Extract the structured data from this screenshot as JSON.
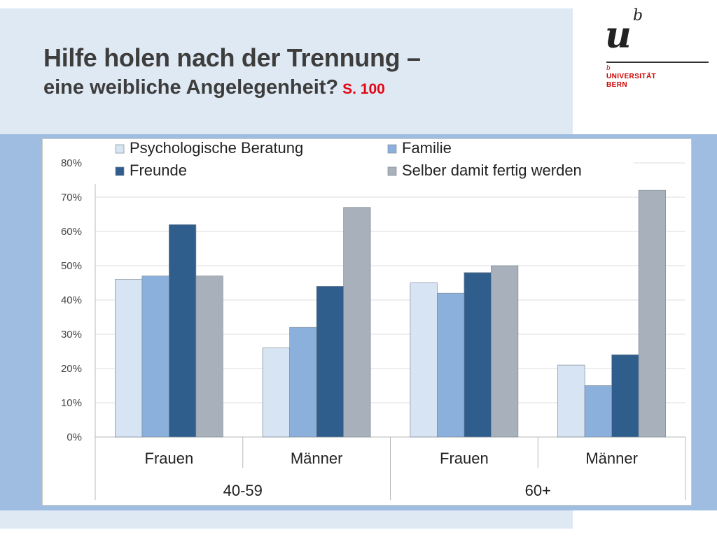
{
  "slide": {
    "title": "Hilfe holen nach der Trennung –",
    "subtitle": "eine weibliche Angelegenheit?",
    "page_ref": "S. 100"
  },
  "logo": {
    "mark_u": "u",
    "mark_b": "b",
    "small_b": "b",
    "line1": "UNIVERSITÄT",
    "line2": "BERN"
  },
  "colors": {
    "psych": "#d6e4f3",
    "familie": "#8bb0dc",
    "freunde": "#2f5d8c",
    "selber": "#a8b1bb",
    "bar_stroke": "#7f8a96",
    "grid": "#dcdcdc",
    "axis": "#b8b8b8"
  },
  "chart_data": {
    "type": "bar",
    "title": "",
    "ylim": [
      0,
      80
    ],
    "yticks": [
      0,
      10,
      20,
      30,
      40,
      50,
      60,
      70,
      80
    ],
    "ytick_labels": [
      "0%",
      "10%",
      "20%",
      "30%",
      "40%",
      "50%",
      "60%",
      "70%",
      "80%"
    ],
    "legend_position": "top",
    "categories": [
      "Frauen",
      "Männer",
      "Frauen",
      "Männer"
    ],
    "groups": [
      {
        "label": "40-59",
        "categories": [
          "Frauen",
          "Männer"
        ]
      },
      {
        "label": "60+",
        "categories": [
          "Frauen",
          "Männer"
        ]
      }
    ],
    "series": [
      {
        "name": "Psychologische Beratung",
        "color_key": "psych",
        "values": [
          46,
          26,
          45,
          21
        ]
      },
      {
        "name": "Familie",
        "color_key": "familie",
        "values": [
          47,
          32,
          42,
          15
        ]
      },
      {
        "name": "Freunde",
        "color_key": "freunde",
        "values": [
          62,
          44,
          48,
          24
        ]
      },
      {
        "name": "Selber damit fertig werden",
        "color_key": "selber",
        "values": [
          47,
          67,
          50,
          72
        ]
      }
    ]
  }
}
